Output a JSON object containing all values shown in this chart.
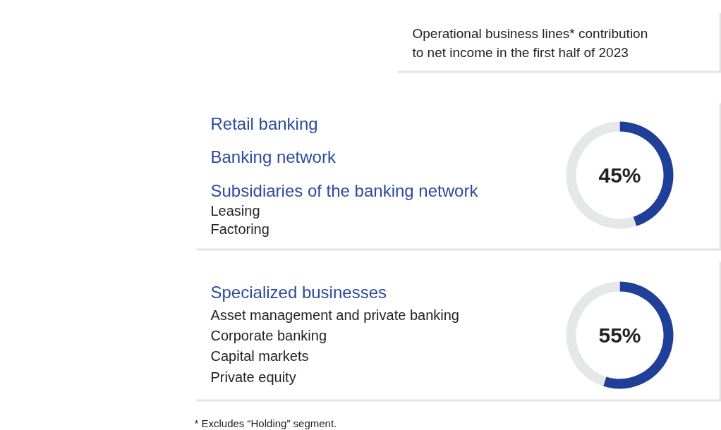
{
  "chart_data": [
    {
      "type": "other",
      "title": "Operational business lines* contribution to net income in the first half of 2023"
    },
    {
      "type": "donut",
      "annotations": [
        "Retail banking",
        "Banking network",
        "Subsidiaries of the banking network",
        "Leasing",
        "Factoring",
        "45%"
      ],
      "categories": [
        null,
        null
      ],
      "values": [
        45,
        55
      ],
      "colors": [
        "#1f3f99",
        "#e6e7e9"
      ]
    },
    {
      "type": "donut",
      "annotations": [
        "Specialized businesses",
        "Asset management and private banking",
        "Corporate banking",
        "Capital markets",
        "Private equity",
        "55%"
      ],
      "categories": [
        null,
        null
      ],
      "values": [
        55,
        45
      ],
      "colors": [
        "#1f3f99",
        "#e6e7e9"
      ]
    },
    {
      "type": "other",
      "annotations": [
        "* Excludes “Holding” segment."
      ]
    }
  ]
}
